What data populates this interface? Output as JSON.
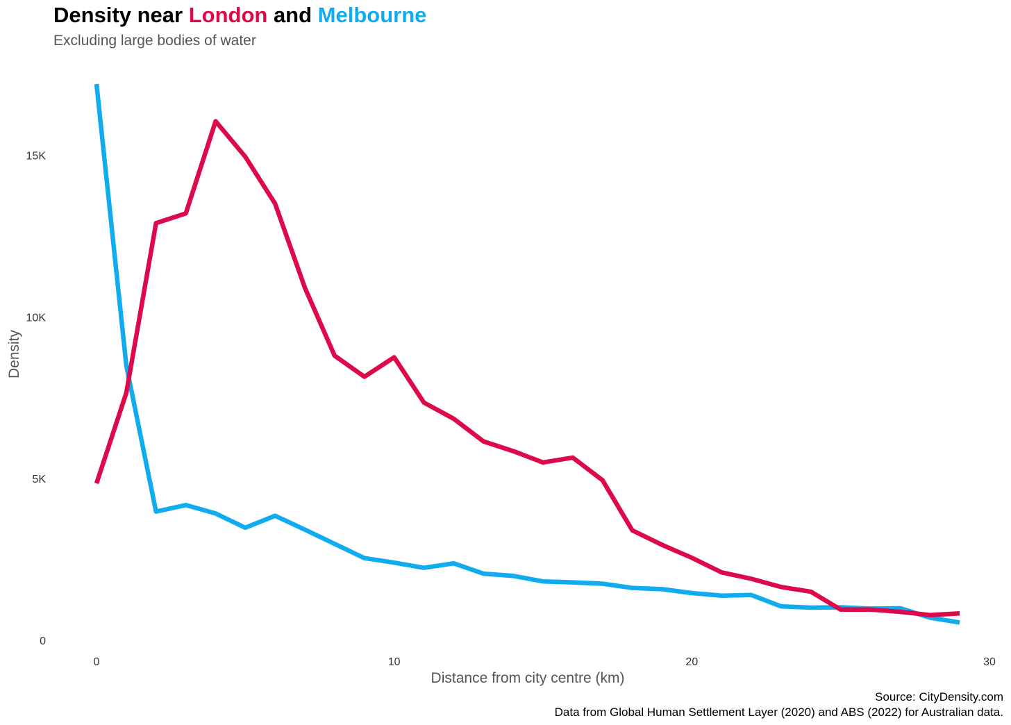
{
  "header": {
    "title_prefix": "Density near ",
    "title_city1": "London",
    "title_mid": " and ",
    "title_city2": "Melbourne",
    "subtitle": "Excluding large bodies of water"
  },
  "footer": {
    "source": "Source: CityDensity.com",
    "note": "Data from Global Human Settlement Layer (2020) and ABS (2022) for Australian data."
  },
  "chart_data": {
    "type": "line",
    "title": "Density near London and Melbourne",
    "subtitle": "Excluding large bodies of water",
    "xlabel": "Distance from city centre (km)",
    "ylabel": "Density",
    "xlim": [
      0,
      30
    ],
    "ylim": [
      0,
      17200
    ],
    "x_ticks": [
      0,
      10,
      20,
      30
    ],
    "x_tick_labels": [
      "0",
      "10",
      "20",
      "30"
    ],
    "y_ticks": [
      0,
      5000,
      10000,
      15000
    ],
    "y_tick_labels": [
      "0",
      "5K",
      "10K",
      "15K"
    ],
    "grid": false,
    "legend": "none (series names coloured in title)",
    "x": [
      0,
      1,
      2,
      3,
      4,
      5,
      6,
      7,
      8,
      9,
      10,
      11,
      12,
      13,
      14,
      15,
      16,
      17,
      18,
      19,
      20,
      21,
      22,
      23,
      24,
      25,
      26,
      27,
      28,
      29
    ],
    "series": [
      {
        "name": "London",
        "color": "#dc0a4b",
        "values": [
          4850,
          7650,
          12900,
          13200,
          16050,
          14950,
          13500,
          10900,
          8800,
          8150,
          8750,
          7350,
          6850,
          6150,
          5850,
          5500,
          5650,
          4950,
          3400,
          2950,
          2550,
          2100,
          1900,
          1650,
          1500,
          950,
          950,
          880,
          780,
          830
        ]
      },
      {
        "name": "Melbourne",
        "color": "#11acef",
        "values": [
          17200,
          8500,
          3980,
          4180,
          3920,
          3480,
          3850,
          3420,
          2980,
          2540,
          2400,
          2240,
          2380,
          2060,
          1990,
          1820,
          1790,
          1750,
          1620,
          1580,
          1460,
          1380,
          1400,
          1050,
          1010,
          1020,
          980,
          990,
          700,
          550
        ]
      }
    ]
  }
}
